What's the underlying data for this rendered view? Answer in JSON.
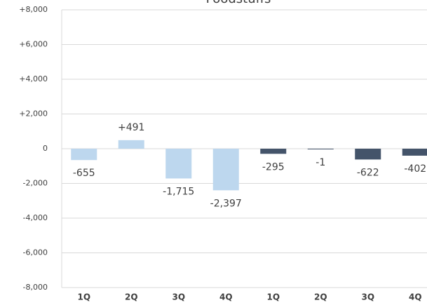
{
  "chart_data": {
    "type": "bar",
    "title": "Foodstuffs",
    "categories": [
      "1Q",
      "2Q",
      "3Q",
      "4Q",
      "1Q",
      "2Q",
      "3Q",
      "4Q"
    ],
    "values": [
      -655,
      491,
      -1715,
      -2397,
      -295,
      -1,
      -622,
      -402
    ],
    "value_labels": [
      "-655",
      "+491",
      "-1,715",
      "-2,397",
      "-295",
      "-1",
      "-622",
      "-402"
    ],
    "colors": [
      "#bdd7ee",
      "#bdd7ee",
      "#bdd7ee",
      "#bdd7ee",
      "#44546a",
      "#44546a",
      "#44546a",
      "#44546a"
    ],
    "ylim": [
      -8000,
      8000
    ],
    "yticks": [
      {
        "value": -8000,
        "label": "-8,000"
      },
      {
        "value": -6000,
        "label": "-6,000"
      },
      {
        "value": -4000,
        "label": "-4,000"
      },
      {
        "value": -2000,
        "label": "-2,000"
      },
      0,
      {
        "value": 2000,
        "label": "+2,000"
      },
      {
        "value": 4000,
        "label": "+4,000"
      },
      {
        "value": 6000,
        "label": "+6,000"
      },
      {
        "value": 8000,
        "label": "+8,000"
      }
    ],
    "grid": true
  }
}
